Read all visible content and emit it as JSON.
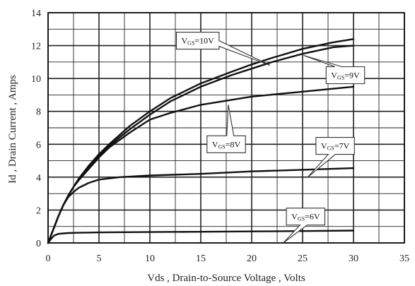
{
  "chart_data": {
    "type": "line",
    "title": "",
    "xlabel": "Vds , Drain-to-Source Voltage , Volts",
    "ylabel": "Id , Drain Current , Amps",
    "xlim": [
      0,
      35
    ],
    "ylim": [
      0,
      14
    ],
    "x_ticks": [
      "0",
      "5",
      "10",
      "15",
      "20",
      "25",
      "30",
      "35"
    ],
    "y_ticks": [
      "0",
      "2",
      "4",
      "6",
      "8",
      "10",
      "12",
      "14"
    ],
    "grid": true,
    "series": [
      {
        "label_prefix": "V",
        "label_sub": "GS",
        "label_suffix": "=10V",
        "x": [
          0,
          0.5,
          1,
          1.5,
          2,
          2.5,
          3,
          4,
          5,
          6,
          8,
          10,
          12,
          15,
          18,
          20,
          22,
          25,
          28,
          30
        ],
        "y": [
          0,
          0.8,
          1.6,
          2.3,
          2.9,
          3.4,
          3.9,
          4.7,
          5.4,
          6.0,
          7.1,
          8.0,
          8.8,
          9.7,
          10.4,
          10.85,
          11.25,
          11.8,
          12.2,
          12.4
        ]
      },
      {
        "label_prefix": "V",
        "label_sub": "GS",
        "label_suffix": "=9V",
        "x": [
          0,
          0.5,
          1,
          1.5,
          2,
          2.5,
          3,
          4,
          5,
          6,
          8,
          10,
          12,
          15,
          18,
          20,
          22,
          25,
          28,
          30
        ],
        "y": [
          0,
          0.8,
          1.6,
          2.3,
          2.9,
          3.4,
          3.85,
          4.6,
          5.3,
          5.9,
          6.9,
          7.8,
          8.6,
          9.5,
          10.2,
          10.6,
          11.0,
          11.5,
          11.9,
          12.0
        ]
      },
      {
        "label_prefix": "V",
        "label_sub": "GS",
        "label_suffix": "=8V",
        "x": [
          0,
          0.5,
          1,
          1.5,
          2,
          2.5,
          3,
          4,
          5,
          6,
          8,
          10,
          12,
          15,
          20,
          25,
          30
        ],
        "y": [
          0,
          0.8,
          1.6,
          2.3,
          2.9,
          3.4,
          3.8,
          4.5,
          5.2,
          5.8,
          6.7,
          7.5,
          7.9,
          8.4,
          8.9,
          9.2,
          9.5
        ]
      },
      {
        "label_prefix": "V",
        "label_sub": "GS",
        "label_suffix": "=7V",
        "x": [
          0,
          0.5,
          1,
          1.5,
          2,
          2.5,
          3,
          4,
          5,
          7,
          10,
          15,
          20,
          25,
          30
        ],
        "y": [
          0,
          0.8,
          1.6,
          2.3,
          2.8,
          3.1,
          3.35,
          3.65,
          3.85,
          4.0,
          4.1,
          4.2,
          4.35,
          4.45,
          4.55
        ]
      },
      {
        "label_prefix": "V",
        "label_sub": "GS",
        "label_suffix": "=6V",
        "x": [
          0,
          0.3,
          0.6,
          1,
          1.5,
          2,
          3,
          5,
          10,
          15,
          20,
          25,
          30
        ],
        "y": [
          0,
          0.25,
          0.45,
          0.55,
          0.58,
          0.6,
          0.62,
          0.64,
          0.66,
          0.68,
          0.7,
          0.72,
          0.75
        ]
      }
    ],
    "callouts": [
      {
        "series": 0,
        "box": [
          14.7,
          12.3
        ],
        "tip": [
          21.8,
          10.8
        ]
      },
      {
        "series": 1,
        "box": [
          29.2,
          10.2
        ],
        "tip": [
          25.1,
          11.4
        ]
      },
      {
        "series": 2,
        "box": [
          17.5,
          6.0
        ],
        "tip": [
          17.7,
          8.4
        ]
      },
      {
        "series": 3,
        "box": [
          28.2,
          5.9
        ],
        "tip": [
          25.5,
          4.0
        ]
      },
      {
        "series": 4,
        "box": [
          25.3,
          1.6
        ],
        "tip": [
          23.1,
          0.0
        ]
      }
    ]
  }
}
